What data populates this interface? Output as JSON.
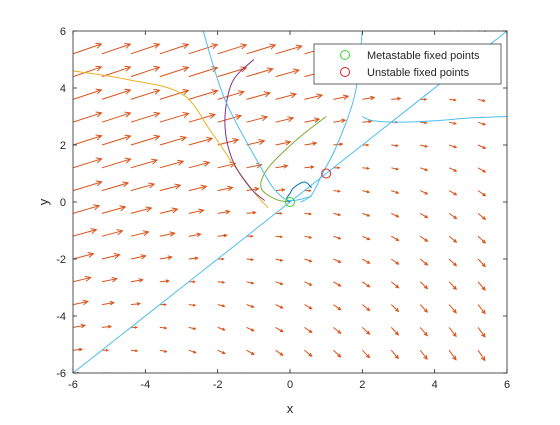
{
  "chart_data": {
    "type": "vector-field-with-trajectories",
    "title": "",
    "xlabel": "x",
    "ylabel": "y",
    "xlim": [
      -6,
      6
    ],
    "ylim": [
      -6,
      6
    ],
    "xticks": [
      -6,
      -4,
      -2,
      0,
      2,
      4,
      6
    ],
    "yticks": [
      -6,
      -4,
      -2,
      0,
      2,
      4,
      6
    ],
    "grid": false,
    "legend": {
      "placement": "top-right",
      "entries": [
        {
          "label": "Metastable fixed points",
          "marker": "circle",
          "color": "#33dd33"
        },
        {
          "label": "Unstable fixed points",
          "marker": "circle",
          "color": "#dd2222"
        }
      ]
    },
    "fixed_points": {
      "metastable": [
        [
          0,
          0
        ]
      ],
      "unstable": [
        [
          1,
          1
        ]
      ]
    },
    "quiver": {
      "color": "#d95319",
      "x": [
        -6,
        -5.2,
        -4.4,
        -3.6,
        -2.8,
        -2.0,
        -1.2,
        -0.4,
        0.4,
        1.2,
        2.0,
        2.8,
        3.6,
        4.4,
        5.2,
        6.0
      ],
      "y": [
        -6,
        -5.2,
        -4.4,
        -3.6,
        -2.8,
        -2.0,
        -1.2,
        -0.4,
        0.4,
        1.2,
        2.0,
        2.8,
        3.6,
        4.4,
        5.2,
        6.0
      ]
    },
    "lines": [
      {
        "color": "#4dbeee",
        "points": [
          [
            -6,
            -6
          ],
          [
            0,
            0
          ],
          [
            1,
            1
          ],
          [
            6,
            6
          ]
        ]
      },
      {
        "color": "#edb120",
        "points": [
          [
            -6,
            4.6
          ],
          [
            -4.5,
            4.3
          ],
          [
            -3,
            3.8
          ],
          [
            -2.2,
            2.5
          ],
          [
            -1.5,
            1.2
          ],
          [
            -0.9,
            0.2
          ],
          [
            -0.6,
            -0.2
          ]
        ]
      },
      {
        "color": "#7e2f8e",
        "points": [
          [
            -1,
            5
          ],
          [
            -1.6,
            4.2
          ],
          [
            -1.8,
            2.8
          ],
          [
            -1.6,
            1.5
          ],
          [
            -1.1,
            0.5
          ],
          [
            -0.7,
            0.05
          ]
        ]
      },
      {
        "color": "#77ac30",
        "points": [
          [
            1,
            3
          ],
          [
            0.2,
            2.2
          ],
          [
            -0.6,
            1.2
          ],
          [
            -0.8,
            0.5
          ],
          [
            -0.4,
            0.1
          ],
          [
            0,
            0
          ]
        ]
      },
      {
        "color": "#0072bd",
        "points": [
          [
            0.6,
            0.5
          ],
          [
            0.4,
            0.7
          ],
          [
            0.1,
            0.5
          ],
          [
            0,
            0.3
          ],
          [
            -0.1,
            0.1
          ],
          [
            0,
            0
          ]
        ]
      },
      {
        "color": "#4dbeee",
        "points": [
          [
            -2.4,
            6
          ],
          [
            -1.8,
            3.6
          ],
          [
            -0.8,
            1.2
          ],
          [
            -0.4,
            0.4
          ],
          [
            0,
            0.05
          ],
          [
            0.6,
            0.2
          ]
        ]
      },
      {
        "color": "#4dbeee",
        "points": [
          [
            2,
            6
          ],
          [
            1.8,
            3.8
          ],
          [
            1.3,
            2
          ],
          [
            0.9,
            1.0
          ],
          [
            0.6,
            0.25
          ],
          [
            0.3,
            0
          ]
        ]
      },
      {
        "color": "#4dbeee",
        "points": [
          [
            2,
            3
          ],
          [
            2.3,
            2.85
          ],
          [
            3,
            2.8
          ],
          [
            4,
            2.85
          ],
          [
            5,
            2.95
          ],
          [
            6,
            3.0
          ]
        ]
      }
    ]
  }
}
